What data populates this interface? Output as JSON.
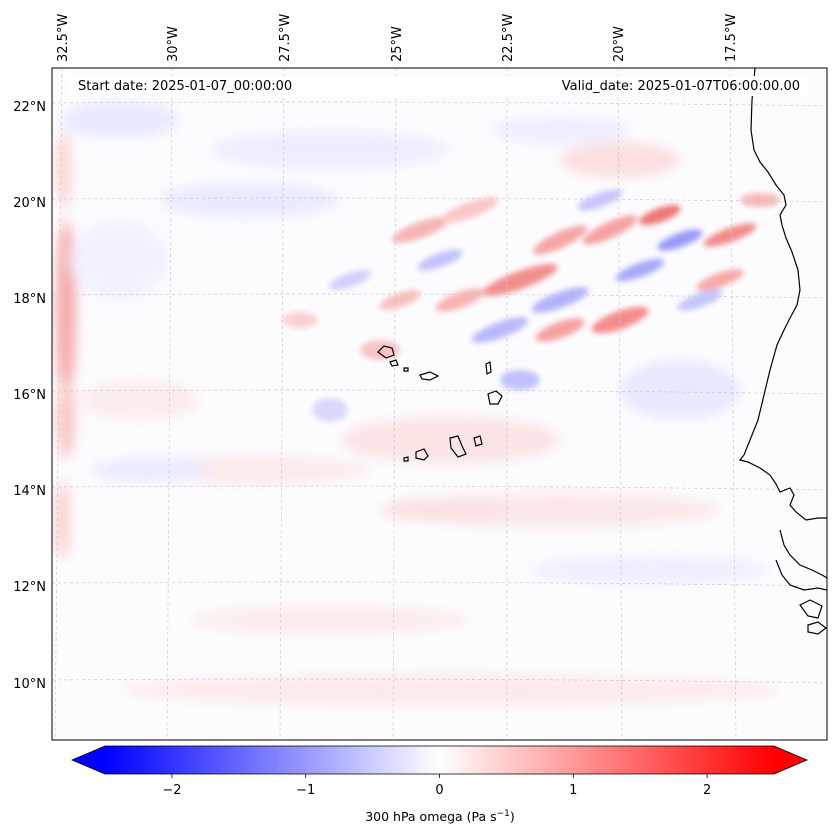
{
  "header": {
    "start_date": "Start date: 2025-01-07_00:00:00",
    "valid_date": "Valid_date: 2025-01-07T06:00:00.00"
  },
  "map": {
    "lon_ticks": [
      "32.5°W",
      "30°W",
      "27.5°W",
      "25°W",
      "22.5°W",
      "20°W",
      "17.5°W"
    ],
    "lat_ticks": [
      "22°N",
      "20°N",
      "18°N",
      "16°N",
      "14°N",
      "12°N",
      "10°N"
    ],
    "gridlines": "dashed"
  },
  "colorbar": {
    "label_main": "300 hPa omega (Pa s",
    "label_exp": "−1",
    "label_end": ")",
    "ticks": [
      "−2",
      "−1",
      "0",
      "1",
      "2"
    ],
    "tick_values": [
      -2,
      -1,
      0,
      1,
      2
    ],
    "range": [
      -2.5,
      2.5
    ],
    "colormap": "bwr",
    "extend": "both",
    "low_color": "#0000ff",
    "mid_color": "#ffffff",
    "high_color": "#ff0000"
  }
}
